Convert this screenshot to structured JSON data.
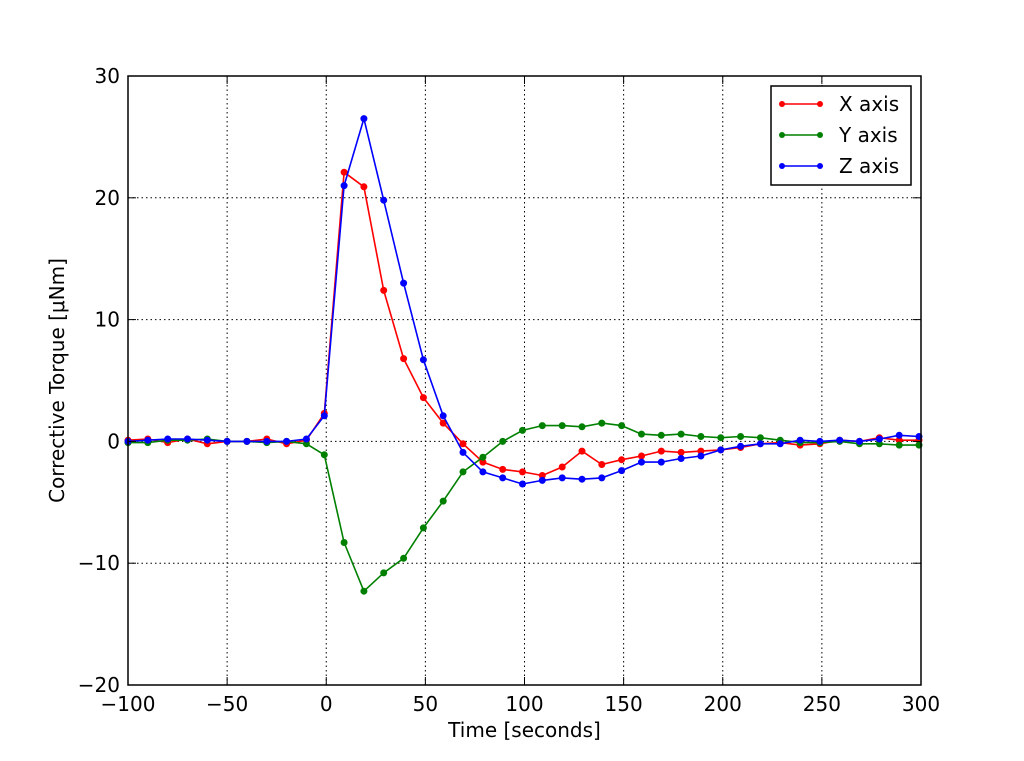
{
  "chart_data": {
    "type": "line",
    "title": "",
    "xlabel": "Time [seconds]",
    "ylabel": "Corrective Torque [μNm]",
    "xlim": [
      -100,
      300
    ],
    "ylim": [
      -20,
      30
    ],
    "xticks": [
      -100,
      -50,
      0,
      50,
      100,
      150,
      200,
      250,
      300
    ],
    "xtick_labels": [
      "−100",
      "−50",
      "0",
      "50",
      "100",
      "150",
      "200",
      "250",
      "300"
    ],
    "yticks": [
      -20,
      -10,
      0,
      10,
      20,
      30
    ],
    "ytick_labels": [
      "−20",
      "−10",
      "0",
      "10",
      "20",
      "30"
    ],
    "grid": true,
    "legend_position": "top-right",
    "x": [
      -100,
      -90,
      -80,
      -70,
      -60,
      -50,
      -40,
      -30,
      -20,
      -10,
      -1,
      9,
      19,
      29,
      39,
      49,
      59,
      69,
      79,
      89,
      99,
      109,
      119,
      129,
      139,
      149,
      159,
      169,
      179,
      189,
      199,
      209,
      219,
      229,
      239,
      249,
      259,
      269,
      279,
      289,
      299
    ],
    "series": [
      {
        "name": "X axis",
        "color": "#ff0000",
        "values": [
          0.1,
          0.2,
          -0.1,
          0.2,
          -0.2,
          0.0,
          0.0,
          0.2,
          -0.2,
          0.1,
          2.3,
          22.1,
          20.9,
          12.4,
          6.8,
          3.6,
          1.5,
          -0.2,
          -1.7,
          -2.3,
          -2.5,
          -2.8,
          -2.1,
          -0.8,
          -1.9,
          -1.5,
          -1.2,
          -0.8,
          -0.9,
          -0.8,
          -0.7,
          -0.5,
          -0.2,
          -0.1,
          -0.3,
          -0.2,
          0.1,
          0.0,
          0.3,
          0.1,
          0.1
        ]
      },
      {
        "name": "Y axis",
        "color": "#008000",
        "values": [
          -0.1,
          -0.1,
          0.1,
          0.1,
          0.2,
          0.0,
          0.0,
          -0.1,
          0.0,
          -0.2,
          -1.1,
          -8.3,
          -12.3,
          -10.8,
          -9.6,
          -7.1,
          -4.9,
          -2.5,
          -1.3,
          0.0,
          0.9,
          1.3,
          1.3,
          1.2,
          1.5,
          1.3,
          0.6,
          0.5,
          0.6,
          0.4,
          0.3,
          0.4,
          0.3,
          0.1,
          -0.1,
          -0.1,
          0.0,
          -0.2,
          -0.2,
          -0.3,
          -0.3
        ]
      },
      {
        "name": "Z axis",
        "color": "#0000ff",
        "values": [
          0.0,
          0.1,
          0.2,
          0.2,
          0.1,
          0.0,
          0.0,
          0.0,
          0.0,
          0.2,
          2.1,
          21.0,
          26.5,
          19.8,
          13.0,
          6.7,
          2.1,
          -0.9,
          -2.5,
          -3.0,
          -3.5,
          -3.2,
          -3.0,
          -3.1,
          -3.0,
          -2.4,
          -1.7,
          -1.7,
          -1.4,
          -1.2,
          -0.7,
          -0.4,
          -0.2,
          -0.2,
          0.1,
          0.0,
          0.1,
          0.0,
          0.2,
          0.5,
          0.4
        ]
      }
    ]
  }
}
